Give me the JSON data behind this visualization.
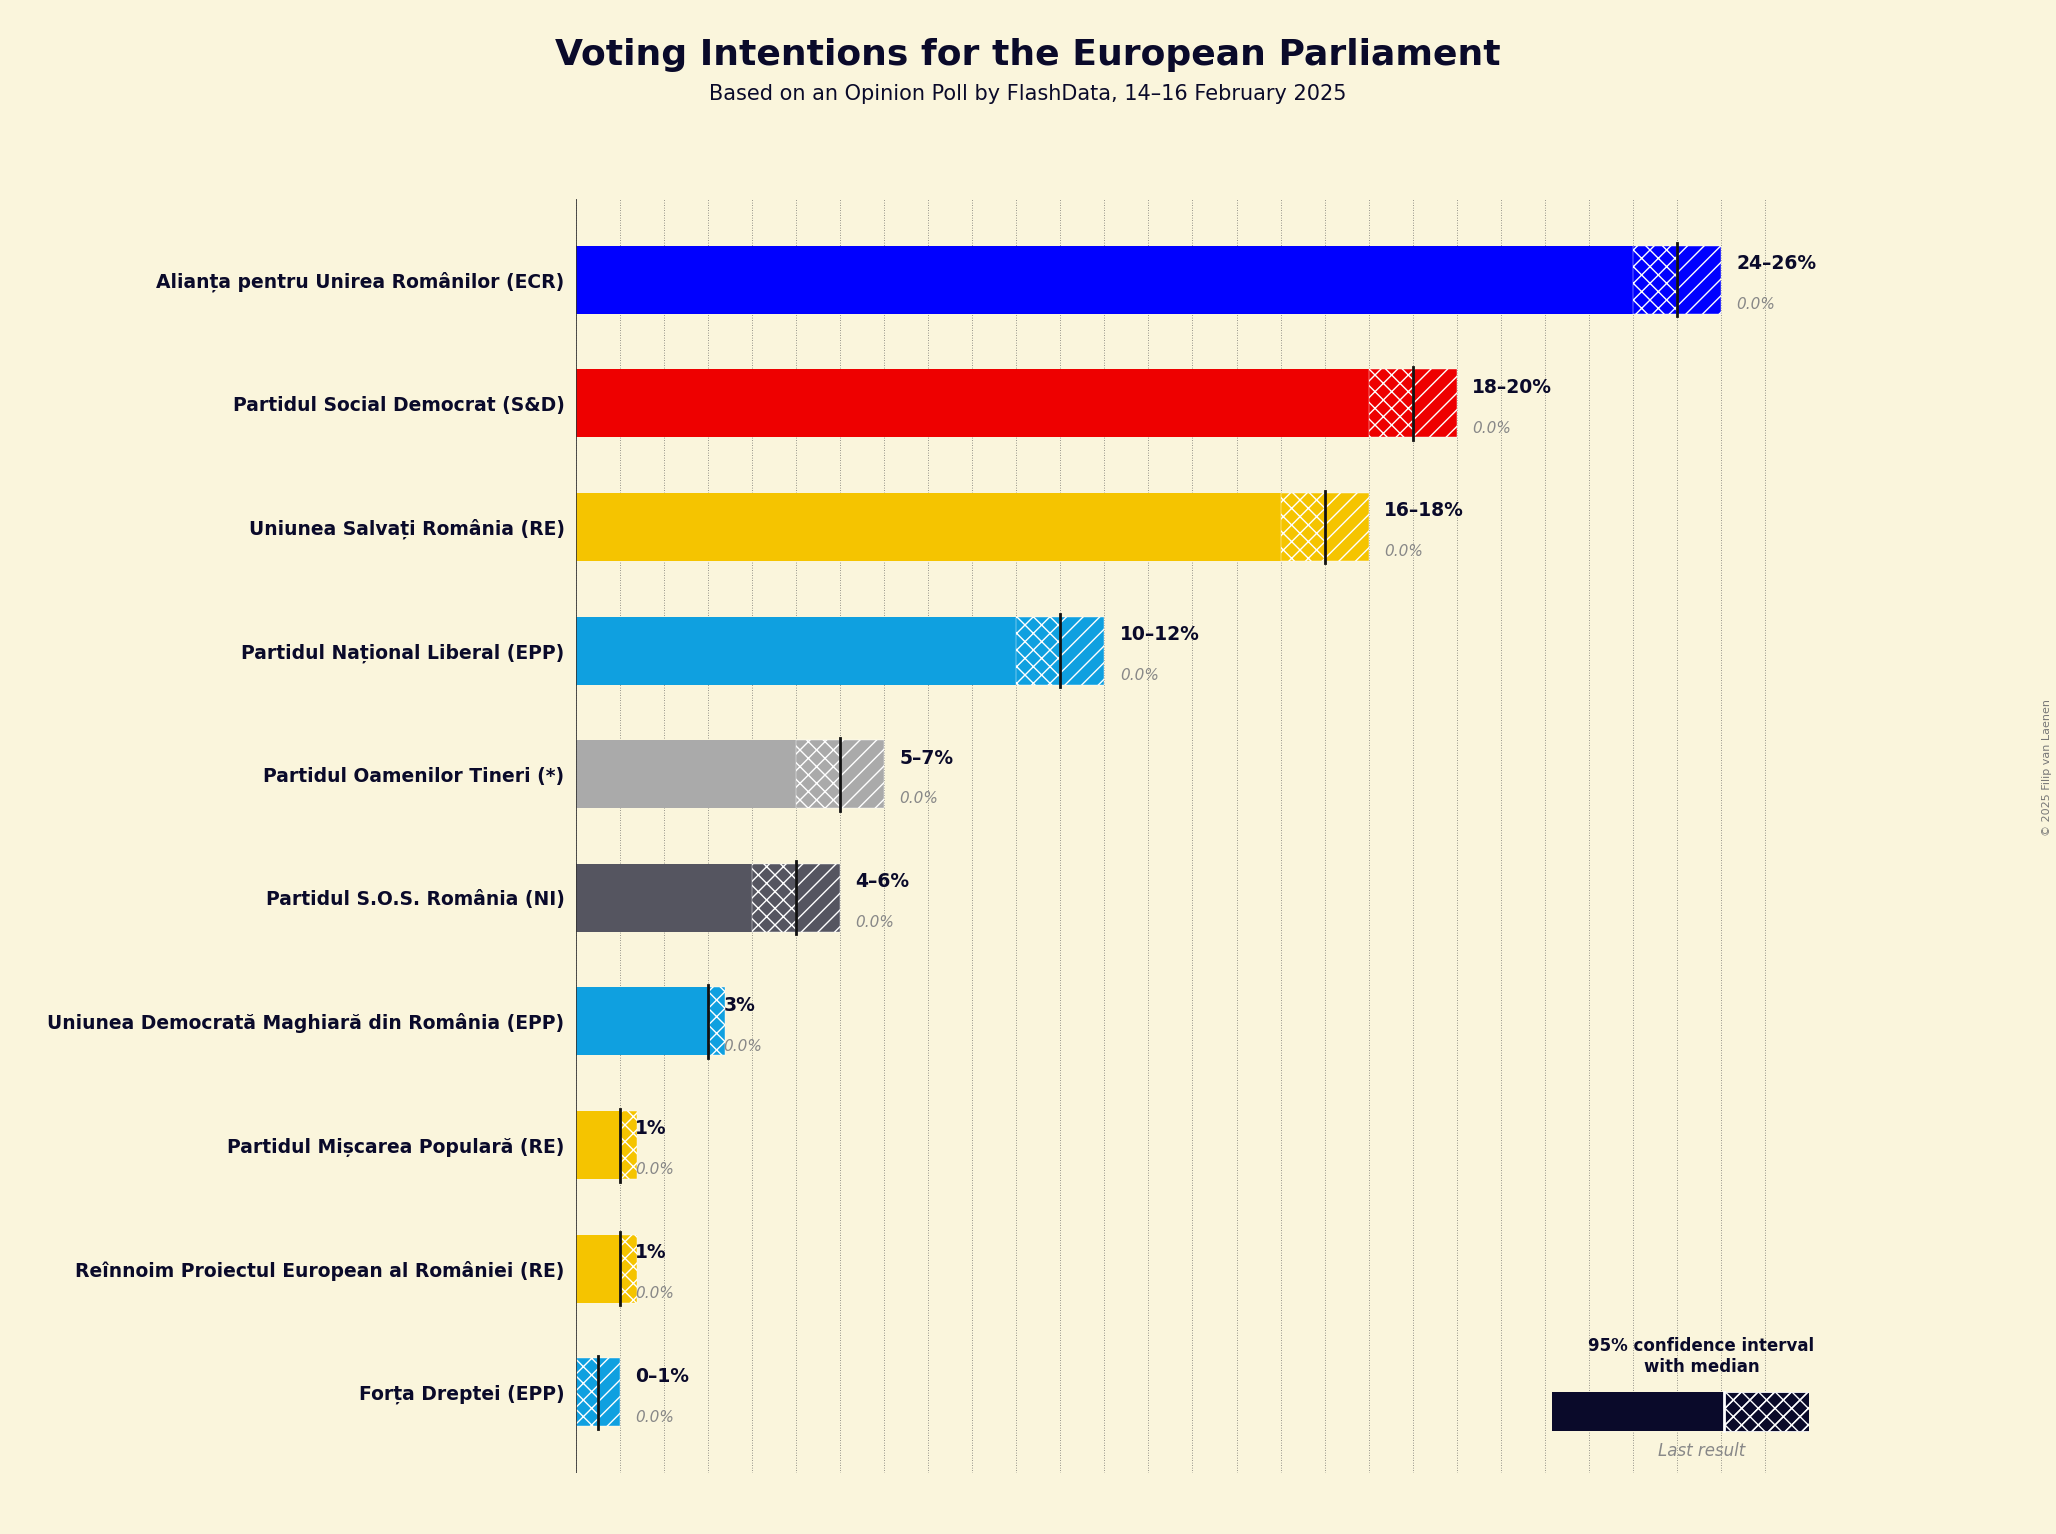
{
  "title": "Voting Intentions for the European Parliament",
  "subtitle": "Based on an Opinion Poll by FlashData, 14–16 February 2025",
  "copyright": "© 2025 Filip van Laenen",
  "background_color": "#faf5dc",
  "parties": [
    {
      "name": "Alianța pentru Unirea Românilor (ECR)",
      "low": 24,
      "high": 26,
      "median": 25,
      "last": 0.0,
      "color": "#0000ff"
    },
    {
      "name": "Partidul Social Democrat (S&D)",
      "low": 18,
      "high": 20,
      "median": 19,
      "last": 0.0,
      "color": "#ee0000"
    },
    {
      "name": "Uniunea Salvați România (RE)",
      "low": 16,
      "high": 18,
      "median": 17,
      "last": 0.0,
      "color": "#f5c400"
    },
    {
      "name": "Partidul Național Liberal (EPP)",
      "low": 10,
      "high": 12,
      "median": 11,
      "last": 0.0,
      "color": "#0fa0e0"
    },
    {
      "name": "Partidul Oamenilor Tineri (*)",
      "low": 5,
      "high": 7,
      "median": 6,
      "last": 0.0,
      "color": "#aaaaaa"
    },
    {
      "name": "Partidul S.O.S. România (NI)",
      "low": 4,
      "high": 6,
      "median": 5,
      "last": 0.0,
      "color": "#555560"
    },
    {
      "name": "Uniunea Democrată Maghiară din România (EPP)",
      "low": 3,
      "high": 3,
      "median": 3,
      "last": 0.0,
      "color": "#0fa0e0"
    },
    {
      "name": "Partidul Mișcarea Populară (RE)",
      "low": 1,
      "high": 1,
      "median": 1,
      "last": 0.0,
      "color": "#f5c400"
    },
    {
      "name": "Reînnoim Proiectul European al României (RE)",
      "low": 1,
      "high": 1,
      "median": 1,
      "last": 0.0,
      "color": "#f5c400"
    },
    {
      "name": "Forța Dreptei (EPP)",
      "low": 0,
      "high": 1,
      "median": 0.5,
      "last": 0.0,
      "color": "#0fa0e0"
    }
  ],
  "xmax": 28,
  "legend_color": "#0a0a2a",
  "label_color_dark": "#0a0a2a",
  "label_color_gray": "#888888"
}
